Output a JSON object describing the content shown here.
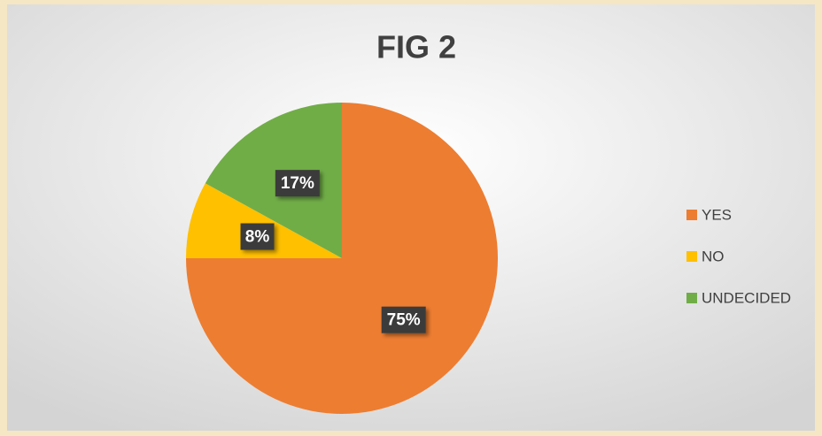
{
  "chart_data": {
    "type": "pie",
    "title": "FIG 2",
    "categories": [
      "YES",
      "NO",
      "UNDECIDED"
    ],
    "values": [
      75,
      8,
      17
    ],
    "value_labels": [
      "75%",
      "8%",
      "17%"
    ],
    "colors": [
      "#ed7d31",
      "#ffc000",
      "#70ad47"
    ],
    "legend": "right"
  }
}
